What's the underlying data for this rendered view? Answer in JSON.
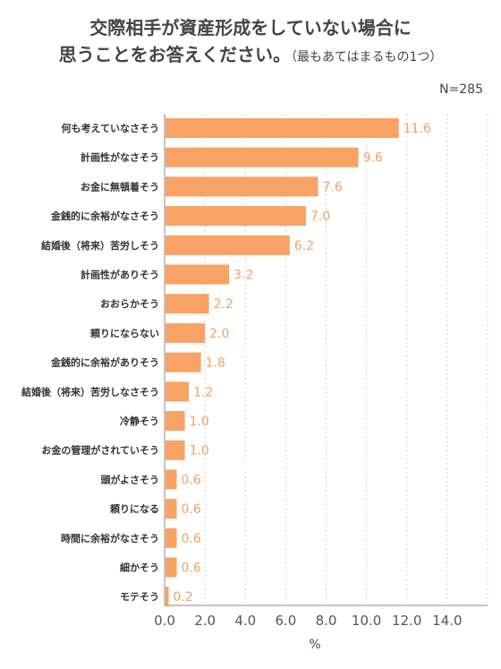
{
  "title_line1": "交際相手が資産形成をしていない場合に",
  "title_line2": "思うことをお答えください。",
  "title_note": "（最もあてはまるもの1つ）",
  "sample_size": "N=285",
  "chart_data": {
    "type": "bar",
    "orientation": "horizontal",
    "bar_color": "#f8a266",
    "label_color": "#f4a063",
    "categories": [
      "何も考えていなさそう",
      "計画性がなさそう",
      "お金に無頓着そう",
      "金銭的に余裕がなさそう",
      "結婚後（将来）苦労しそう",
      "計画性がありそう",
      "おおらかそう",
      "頼りにならない",
      "金銭的に余裕がありそう",
      "結婚後（将来）苦労しなさそう",
      "冷静そう",
      "お金の管理がされていそう",
      "頭がよさそう",
      "頼りになる",
      "時間に余裕がなさそう",
      "細かそう",
      "モテそう"
    ],
    "values": [
      11.6,
      9.6,
      7.6,
      7.0,
      6.2,
      3.2,
      2.2,
      2.0,
      1.8,
      1.2,
      1.0,
      1.0,
      0.6,
      0.6,
      0.6,
      0.6,
      0.2
    ],
    "value_labels": [
      "11.6",
      "9.6",
      "7.6",
      "7.0",
      "6.2",
      "3.2",
      "2.2",
      "2.0",
      "1.8",
      "1.2",
      "1.0",
      "1.0",
      "0.6",
      "0.6",
      "0.6",
      "0.6",
      "0.2"
    ],
    "xticks": [
      "0.0",
      "2.0",
      "4.0",
      "6.0",
      "8.0",
      "10.0",
      "12.0",
      "14.0"
    ],
    "xlim": [
      0,
      16
    ],
    "xlabel": "%",
    "grid": true
  }
}
